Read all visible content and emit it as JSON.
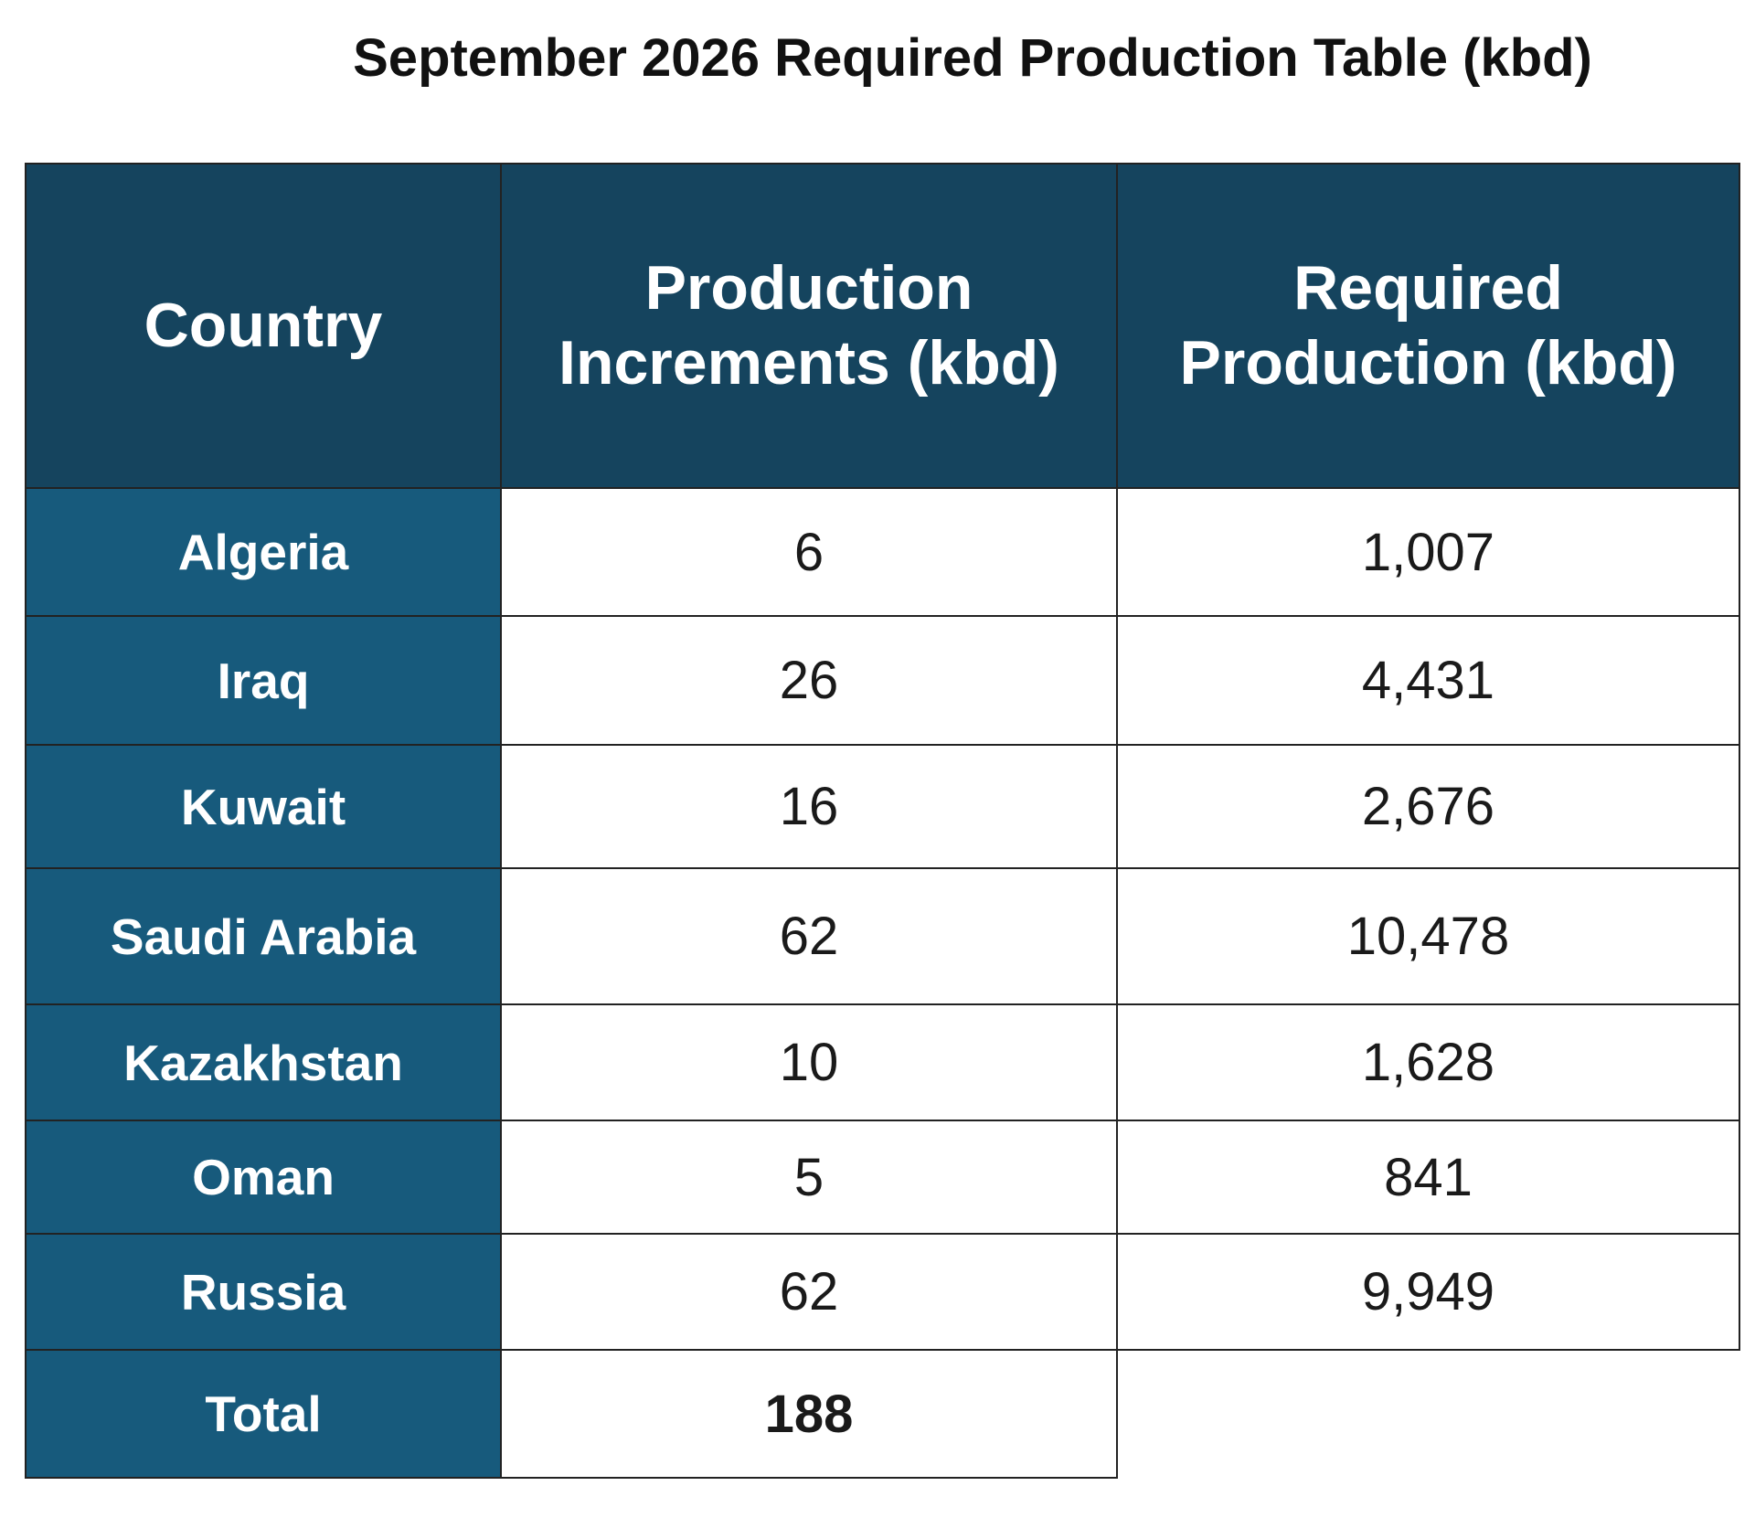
{
  "title": "September 2026 Required Production Table (kbd)",
  "table": {
    "header": [
      "Country",
      "Production Increments (kbd)",
      "Required Production (kbd)"
    ],
    "rows": [
      [
        "Algeria",
        "6",
        "1,007"
      ],
      [
        "Iraq",
        "26",
        "4,431"
      ],
      [
        "Kuwait",
        "16",
        "2,676"
      ],
      [
        "Saudi Arabia",
        "62",
        "10,478"
      ],
      [
        "Kazakhstan",
        "10",
        "1,628"
      ],
      [
        "Oman",
        "5",
        "841"
      ],
      [
        "Russia",
        "62",
        "9,949"
      ],
      [
        "Total",
        "188"
      ]
    ]
  }
}
